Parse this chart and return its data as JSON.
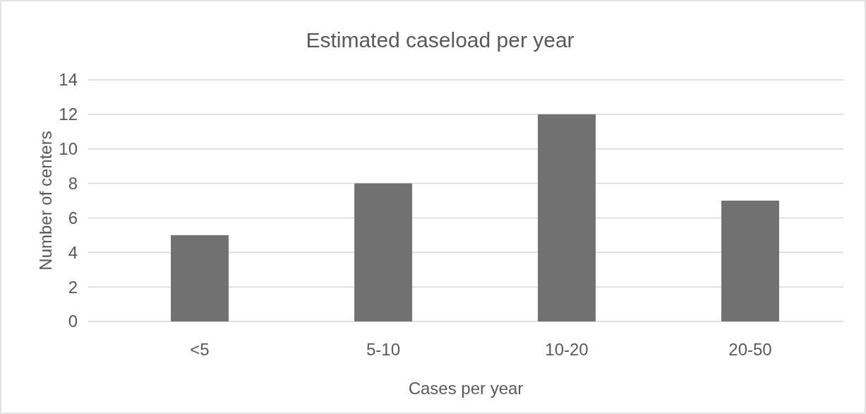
{
  "chart_data": {
    "type": "bar",
    "title": "Estimated caseload per year",
    "xlabel": "Cases per year",
    "ylabel": "Number of centers",
    "categories": [
      "<5",
      "5-10",
      "10-20",
      "20-50"
    ],
    "values": [
      5,
      8,
      12,
      7
    ],
    "color": "#717171",
    "ylim": [
      0,
      14
    ],
    "yticks": [
      0,
      2,
      4,
      6,
      8,
      10,
      12,
      14
    ],
    "grid": "y"
  }
}
